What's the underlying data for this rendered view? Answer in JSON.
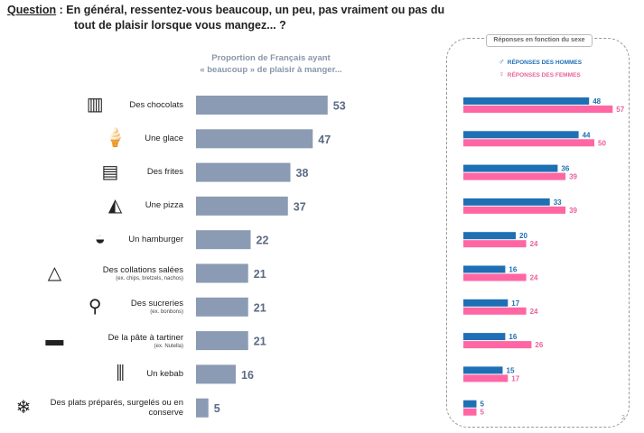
{
  "question": {
    "label": "Question",
    "line1": " : En général, ressentez-vous beaucoup, un peu, pas vraiment ou pas du",
    "line2": "tout de plaisir lorsque vous mangez... ?"
  },
  "left_subtitle_line1": "Proportion de Français ayant",
  "left_subtitle_line2": "« beaucoup » de plaisir à manger...",
  "right_panel": {
    "title": "Réponses en fonction du sexe",
    "legend_men": "RÉPONSES DES HOMMES",
    "legend_women": "RÉPONSES DES FEMMES",
    "corner_mark": "2"
  },
  "colors": {
    "total": "#8a9bb3",
    "men": "#1f6fb5",
    "women": "#ff66a3"
  },
  "chart_data": [
    {
      "type": "bar",
      "orientation": "horizontal",
      "title": "Proportion de Français ayant « beaucoup » de plaisir à manger...",
      "categories": [
        "Des chocolats",
        "Une glace",
        "Des frites",
        "Une pizza",
        "Un hamburger",
        "Des collations salées",
        "Des sucreries",
        "De la pâte à tartiner",
        "Un kebab",
        "Des plats préparés, surgelés ou en conserve"
      ],
      "category_notes": [
        "",
        "",
        "",
        "",
        "",
        "(ex. chips, bretzels, nachos)",
        "(ex. bonbons)",
        "(ex. Nutella)",
        "",
        ""
      ],
      "values": [
        53,
        47,
        38,
        37,
        22,
        21,
        21,
        21,
        16,
        5
      ],
      "xlim": [
        0,
        60
      ]
    },
    {
      "type": "bar",
      "orientation": "horizontal",
      "title": "Réponses en fonction du sexe",
      "categories": [
        "Des chocolats",
        "Une glace",
        "Des frites",
        "Une pizza",
        "Un hamburger",
        "Des collations salées",
        "Des sucreries",
        "De la pâte à tartiner",
        "Un kebab",
        "Des plats préparés, surgelés ou en conserve"
      ],
      "series": [
        {
          "name": "RÉPONSES DES HOMMES",
          "values": [
            48,
            44,
            36,
            33,
            20,
            16,
            17,
            16,
            15,
            5
          ]
        },
        {
          "name": "RÉPONSES DES FEMMES",
          "values": [
            57,
            50,
            39,
            39,
            24,
            24,
            24,
            26,
            17,
            5
          ]
        }
      ],
      "xlim": [
        0,
        60
      ],
      "legend": "top"
    }
  ]
}
